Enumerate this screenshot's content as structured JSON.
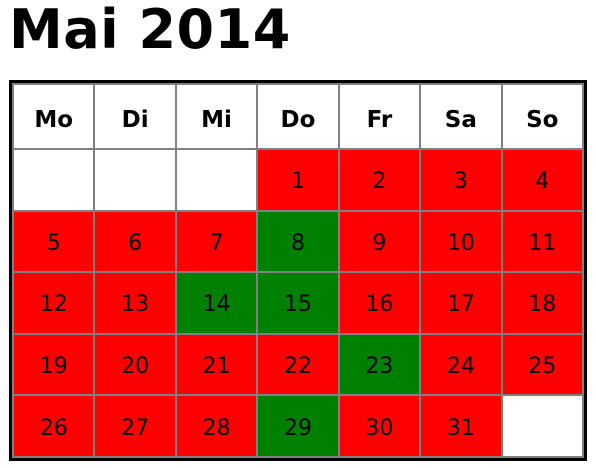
{
  "title": "Mai 2014",
  "colors": {
    "red": "#ff0000",
    "green": "#008000",
    "empty": "#ffffff",
    "grid_line": "#808080",
    "border": "#000000"
  },
  "weekdays": [
    "Mo",
    "Di",
    "Mi",
    "Do",
    "Fr",
    "Sa",
    "So"
  ],
  "weeks": [
    [
      {
        "day": "",
        "status": "empty"
      },
      {
        "day": "",
        "status": "empty"
      },
      {
        "day": "",
        "status": "empty"
      },
      {
        "day": "1",
        "status": "red"
      },
      {
        "day": "2",
        "status": "red"
      },
      {
        "day": "3",
        "status": "red"
      },
      {
        "day": "4",
        "status": "red"
      }
    ],
    [
      {
        "day": "5",
        "status": "red"
      },
      {
        "day": "6",
        "status": "red"
      },
      {
        "day": "7",
        "status": "red"
      },
      {
        "day": "8",
        "status": "green"
      },
      {
        "day": "9",
        "status": "red"
      },
      {
        "day": "10",
        "status": "red"
      },
      {
        "day": "11",
        "status": "red"
      }
    ],
    [
      {
        "day": "12",
        "status": "red"
      },
      {
        "day": "13",
        "status": "red"
      },
      {
        "day": "14",
        "status": "green"
      },
      {
        "day": "15",
        "status": "green"
      },
      {
        "day": "16",
        "status": "red"
      },
      {
        "day": "17",
        "status": "red"
      },
      {
        "day": "18",
        "status": "red"
      }
    ],
    [
      {
        "day": "19",
        "status": "red"
      },
      {
        "day": "20",
        "status": "red"
      },
      {
        "day": "21",
        "status": "red"
      },
      {
        "day": "22",
        "status": "red"
      },
      {
        "day": "23",
        "status": "green"
      },
      {
        "day": "24",
        "status": "red"
      },
      {
        "day": "25",
        "status": "red"
      }
    ],
    [
      {
        "day": "26",
        "status": "red"
      },
      {
        "day": "27",
        "status": "red"
      },
      {
        "day": "28",
        "status": "red"
      },
      {
        "day": "29",
        "status": "green"
      },
      {
        "day": "30",
        "status": "red"
      },
      {
        "day": "31",
        "status": "red"
      },
      {
        "day": "",
        "status": "empty"
      }
    ]
  ]
}
